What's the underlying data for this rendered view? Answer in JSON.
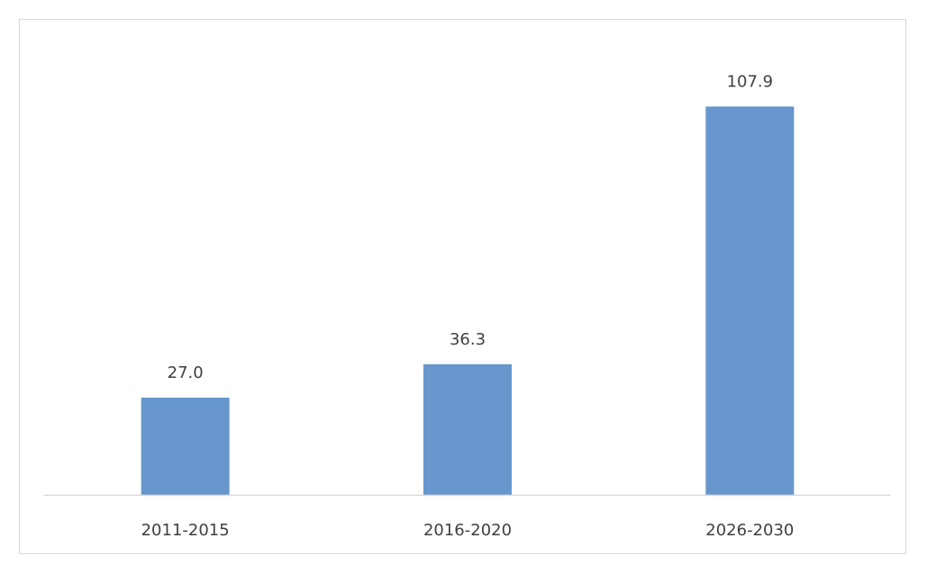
{
  "colors": {
    "bar": "#6797cd",
    "axis": "#d9d9d9",
    "text": "#404040",
    "border": "#d9d9d9"
  },
  "chart_data": {
    "type": "bar",
    "categories": [
      "2011-2015",
      "2016-2020",
      "2026-2030"
    ],
    "values": [
      27.0,
      36.3,
      107.9
    ],
    "data_labels": [
      "27.0",
      "36.3",
      "107.9"
    ],
    "title": "",
    "xlabel": "",
    "ylabel": "",
    "ylim": [
      0,
      110
    ],
    "grid": false,
    "legend": "none"
  }
}
